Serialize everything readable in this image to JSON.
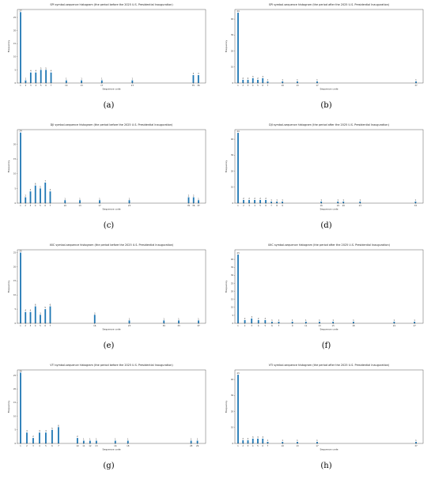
{
  "chart_data": [
    {
      "type": "bar",
      "caption": "(a)",
      "title": "SPI symbol-sequence histogram (the period before the 2025 U.S. Presidential Inauguration)",
      "xlabel": "Sequence code",
      "ylabel": "Frequency",
      "categories": [
        "1",
        "2",
        "3",
        "4",
        "5",
        "6",
        "7",
        "10",
        "13",
        "17",
        "23",
        "35",
        "36"
      ],
      "values": [
        27,
        1,
        4,
        4,
        5,
        5,
        4,
        1,
        1,
        1,
        1,
        3,
        3
      ],
      "ylim": [
        0,
        28
      ],
      "yticks": [
        0,
        5,
        10,
        15,
        20,
        25
      ]
    },
    {
      "type": "bar",
      "caption": "(b)",
      "title": "SPI symbol-sequence histogram (the period after the 2025 U.S. Presidential Inauguration)",
      "xlabel": "Sequence code",
      "ylabel": "Frequency",
      "categories": [
        "1",
        "2",
        "3",
        "4",
        "5",
        "6",
        "7",
        "10",
        "13",
        "17",
        "37"
      ],
      "values": [
        44,
        2,
        2,
        3,
        2,
        3,
        1,
        1,
        1,
        1,
        1
      ],
      "ylim": [
        0,
        46
      ],
      "yticks": [
        0,
        10,
        20,
        30,
        40
      ]
    },
    {
      "type": "bar",
      "caption": "(c)",
      "title": "DJI symbol-sequence histogram (the period before the 2025 U.S. Presidential Inauguration)",
      "xlabel": "Sequence code",
      "ylabel": "Frequency",
      "categories": [
        "1",
        "2",
        "3",
        "4",
        "5",
        "6",
        "7",
        "10",
        "13",
        "17",
        "23",
        "35",
        "36",
        "37"
      ],
      "values": [
        24,
        2,
        4,
        6,
        5,
        7,
        4,
        1,
        1,
        1,
        1,
        2,
        2,
        1
      ],
      "ylim": [
        0,
        25
      ],
      "yticks": [
        0,
        5,
        10,
        15,
        20
      ]
    },
    {
      "type": "bar",
      "caption": "(d)",
      "title": "DJI symbol-sequence histogram (the period after the 2025 U.S. Presidential Inauguration)",
      "xlabel": "Sequence code",
      "ylabel": "Frequency",
      "categories": [
        "1",
        "2",
        "3",
        "4",
        "5",
        "6",
        "7",
        "8",
        "9",
        "16",
        "19",
        "20",
        "23",
        "33"
      ],
      "values": [
        44,
        2,
        2,
        2,
        2,
        2,
        1,
        1,
        1,
        1,
        1,
        1,
        1,
        1
      ],
      "ylim": [
        0,
        46
      ],
      "yticks": [
        0,
        10,
        20,
        30,
        40
      ]
    },
    {
      "type": "bar",
      "caption": "(e)",
      "title": "IXIC symbol-sequence histogram (the period before the 2025 U.S. Presidential Inauguration)",
      "xlabel": "Sequence code",
      "ylabel": "Frequency",
      "categories": [
        "1",
        "2",
        "3",
        "4",
        "5",
        "6",
        "7",
        "16",
        "23",
        "30",
        "33",
        "37"
      ],
      "values": [
        25,
        4,
        4,
        6,
        3,
        5,
        6,
        3,
        1,
        1,
        1,
        1
      ],
      "ylim": [
        0,
        26
      ],
      "yticks": [
        0,
        5,
        10,
        15,
        20,
        25
      ]
    },
    {
      "type": "bar",
      "caption": "(f)",
      "title": "IXIC symbol-sequence histogram (the period after the 2025 U.S. Presidential Inauguration)",
      "xlabel": "Sequence code",
      "ylabel": "Frequency",
      "categories": [
        "1",
        "2",
        "3",
        "4",
        "5",
        "6",
        "7",
        "9",
        "11",
        "13",
        "15",
        "18",
        "24",
        "27"
      ],
      "values": [
        43,
        2,
        3,
        2,
        2,
        1,
        1,
        1,
        1,
        1,
        1,
        1,
        1,
        1
      ],
      "ylim": [
        0,
        46
      ],
      "yticks": [
        0,
        5,
        10,
        15,
        20,
        25,
        30,
        35,
        40
      ]
    },
    {
      "type": "bar",
      "caption": "(g)",
      "title": "VTI symbol-sequence histogram (the period before the 2025 U.S. Presidential Inauguration)",
      "xlabel": "Sequence code",
      "ylabel": "Frequency",
      "categories": [
        "1",
        "2",
        "3",
        "4",
        "5",
        "6",
        "7",
        "10",
        "11",
        "12",
        "13",
        "16",
        "18",
        "28",
        "29"
      ],
      "values": [
        26,
        4,
        2,
        4,
        4,
        5,
        6,
        2,
        1,
        1,
        1,
        1,
        1,
        1,
        1
      ],
      "ylim": [
        0,
        27
      ],
      "yticks": [
        0,
        5,
        10,
        15,
        20,
        25
      ]
    },
    {
      "type": "bar",
      "caption": "(h)",
      "title": "VTI symbol-sequence histogram (the period after the 2025 U.S. Presidential Inauguration)",
      "xlabel": "Sequence code",
      "ylabel": "Frequency",
      "categories": [
        "1",
        "2",
        "3",
        "4",
        "5",
        "6",
        "7",
        "10",
        "13",
        "17",
        "37"
      ],
      "values": [
        43,
        2,
        2,
        3,
        3,
        3,
        1,
        1,
        1,
        1,
        1
      ],
      "ylim": [
        0,
        46
      ],
      "yticks": [
        0,
        10,
        20,
        30,
        40
      ]
    }
  ]
}
